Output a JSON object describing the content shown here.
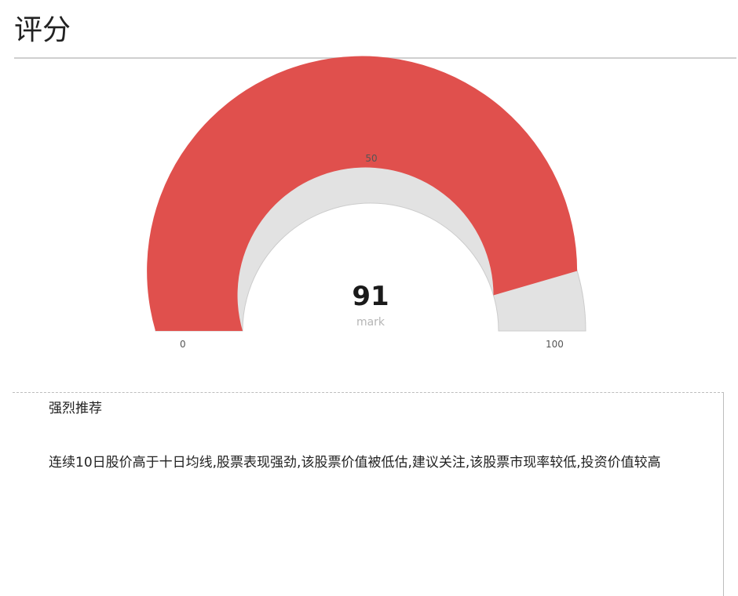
{
  "header": {
    "title": "评分"
  },
  "gauge": {
    "value": 91,
    "display_value": "91",
    "unit": "mark",
    "min": 0,
    "max": 100,
    "min_label": "0",
    "mid_label": "50",
    "max_label": "100",
    "fill_color": "#e0504d",
    "track_color": "#e2e2e2"
  },
  "rating": {
    "label": "强烈推荐",
    "description": "连续10日股价高于十日均线,股票表现强劲,该股票价值被低估,建议关注,该股票市现率较低,投资价值较高"
  }
}
